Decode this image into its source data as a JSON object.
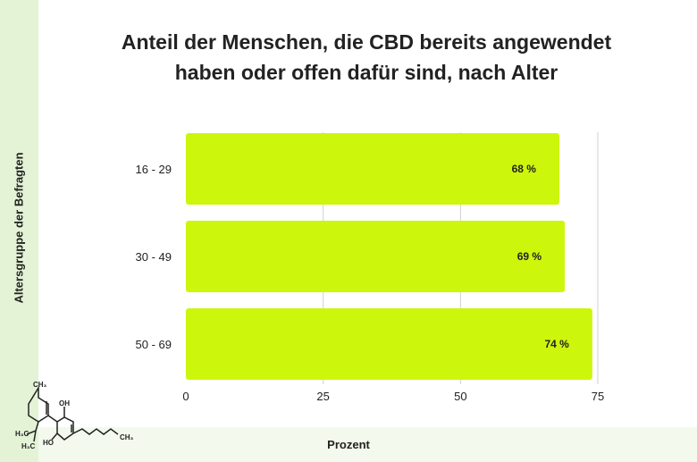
{
  "chart_data": {
    "type": "bar",
    "orientation": "horizontal",
    "title": "Anteil der Menschen, die CBD bereits angewendet haben oder offen dafür sind, nach Alter",
    "title_lines": [
      "Anteil der Menschen, die CBD bereits angewendet",
      "haben oder offen dafür sind, nach Alter"
    ],
    "xlabel": "Prozent",
    "ylabel": "Altersgruppe der Befragten",
    "categories": [
      "16 - 29",
      "30 - 49",
      "50 - 69"
    ],
    "values": [
      68,
      69,
      74
    ],
    "data_labels": [
      "68 %",
      "69 %",
      "74 %"
    ],
    "xlim": [
      0,
      75
    ],
    "xticks": [
      "0",
      "25",
      "50",
      "75"
    ],
    "grid": true,
    "bar_color": "#ccf60c"
  },
  "molecule_labels": [
    "CH3",
    "OH",
    "HO",
    "H3C",
    "H3C",
    "CH3"
  ]
}
